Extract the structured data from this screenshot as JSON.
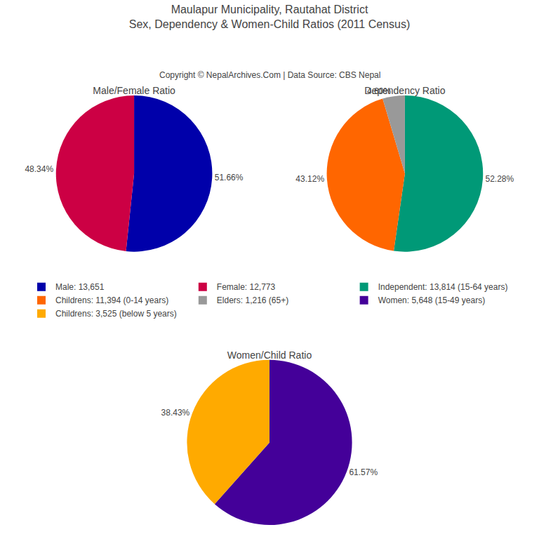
{
  "title": "Maulapur Municipality, Rautahat District",
  "subtitle": "Sex, Dependency & Women-Child Ratios (2011 Census)",
  "annotations": [
    "Copyright © NepalArchives.Com | Data Source: CBS Nepal"
  ],
  "legend": "center",
  "chart_data": [
    {
      "type": "pie",
      "title": "Male/Female Ratio",
      "categories": [
        "Male: 13,651",
        "Female: 12,773"
      ],
      "values": [
        51.66,
        48.34
      ],
      "value_labels": [
        "51.66%",
        "48.34%"
      ],
      "colors": [
        "#0000AA",
        "#CC0044"
      ],
      "data_labels": true
    },
    {
      "type": "pie",
      "title": "Dependency Ratio",
      "categories": [
        "Independent: 13,814 (15-64 years)",
        "Childrens: 11,394 (0-14 years)",
        "Elders: 1,216 (65+)"
      ],
      "values": [
        52.28,
        43.12,
        4.6
      ],
      "value_labels": [
        "52.28%",
        "43.12%",
        "4.60%"
      ],
      "colors": [
        "#009977",
        "#FF6600",
        "#999999"
      ],
      "data_labels": true
    },
    {
      "type": "pie",
      "title": "Women/Child Ratio",
      "categories": [
        "Women: 5,648 (15-49 years)",
        "Childrens: 3,525 (below 5 years)"
      ],
      "values": [
        61.57,
        38.43
      ],
      "value_labels": [
        "61.57%",
        "38.43%"
      ],
      "colors": [
        "#440099",
        "#FFAA00"
      ],
      "data_labels": true
    }
  ]
}
